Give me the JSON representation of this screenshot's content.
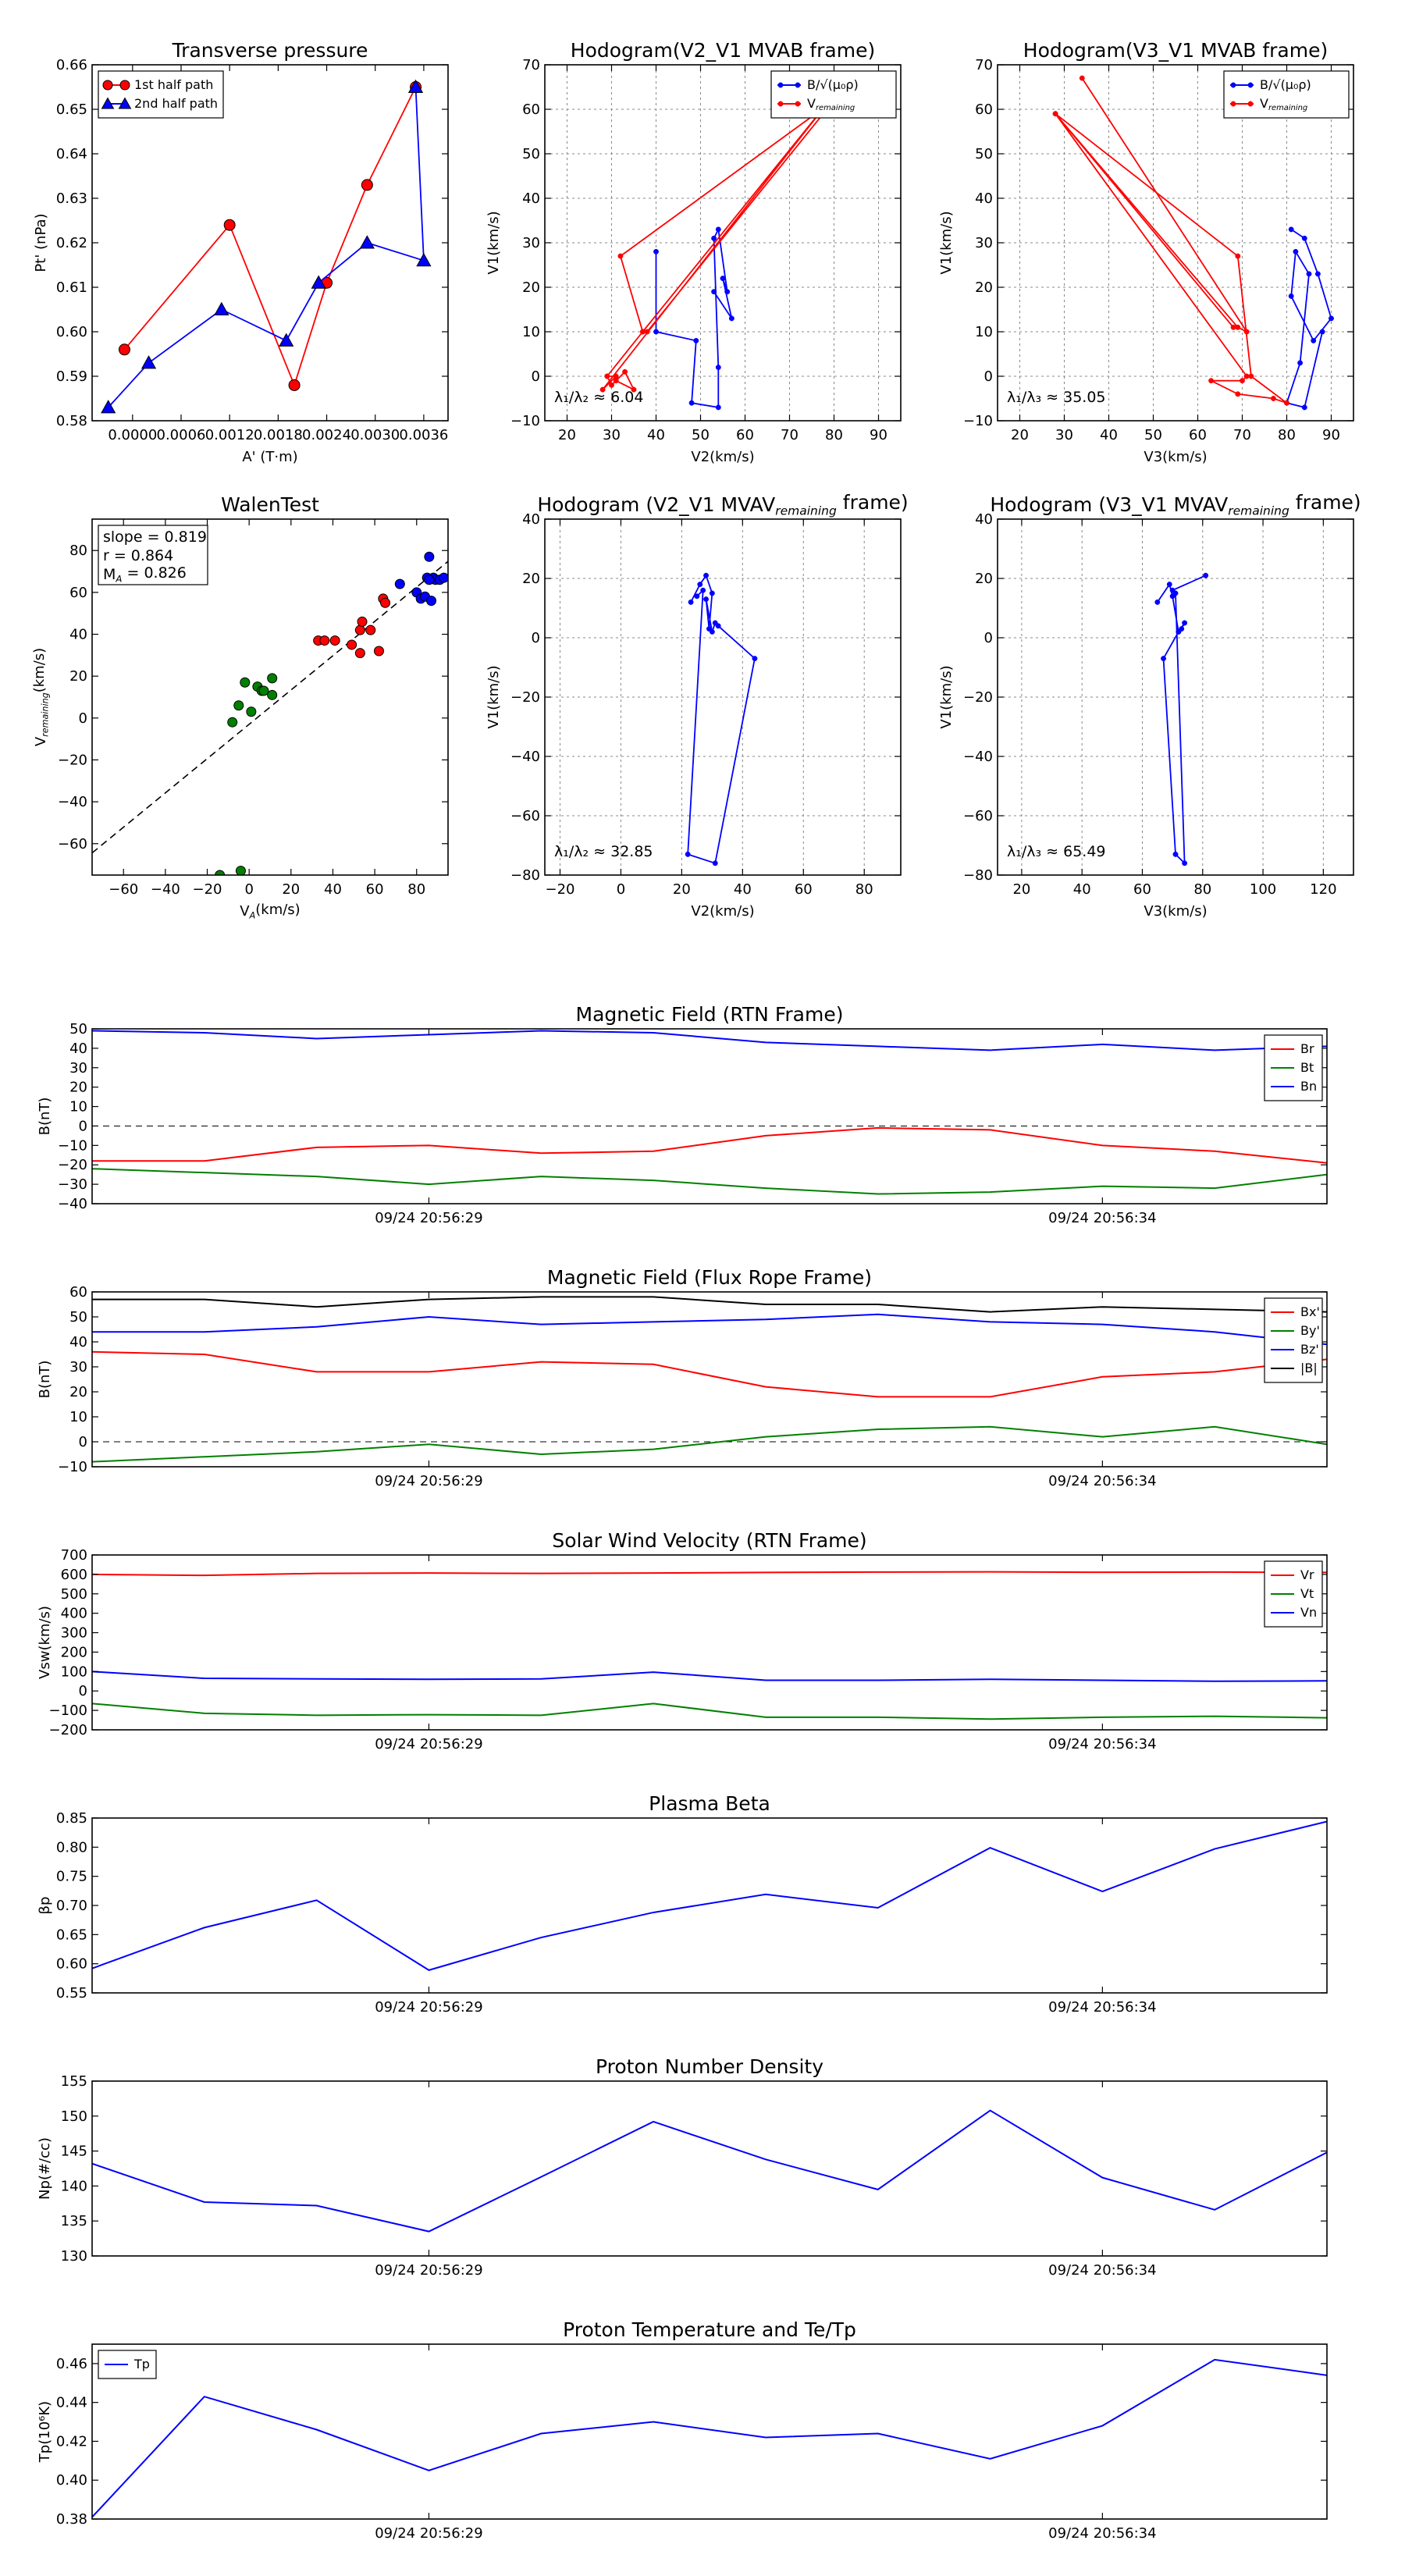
{
  "chart_data": [
    {
      "id": "p1",
      "type": "line",
      "title": "Transverse pressure",
      "xlabel": "A' (T·m)",
      "ylabel": "Pt' (nPa)",
      "xlim": [
        -0.0005,
        0.0039
      ],
      "ylim": [
        0.58,
        0.66
      ],
      "xticks": [
        0.0,
        0.0006,
        0.0012,
        0.0018,
        0.0024,
        0.003,
        0.0036
      ],
      "xticklabels": [
        "0.0000",
        "0.0006",
        "0.0012",
        "0.0018",
        "0.0024",
        "0.0030",
        "0.0036"
      ],
      "yticks": [
        0.58,
        0.59,
        0.6,
        0.61,
        0.62,
        0.63,
        0.64,
        0.65,
        0.66
      ],
      "yticklabels": [
        "0.58",
        "0.59",
        "0.60",
        "0.61",
        "0.62",
        "0.63",
        "0.64",
        "0.65",
        "0.66"
      ],
      "grid": false,
      "legend": "top-left",
      "series": [
        {
          "name": "1st half path",
          "color": "#ff0000",
          "marker": "circle",
          "x": [
            -0.0001,
            0.0012,
            0.002,
            0.0024,
            0.0029,
            0.0035
          ],
          "y": [
            0.596,
            0.624,
            0.588,
            0.611,
            0.633,
            0.655
          ]
        },
        {
          "name": "2nd half path",
          "color": "#0000ff",
          "marker": "triangle",
          "x": [
            -0.0003,
            0.0002,
            0.0011,
            0.0019,
            0.0023,
            0.0029,
            0.0036,
            0.0035
          ],
          "y": [
            0.583,
            0.593,
            0.605,
            0.598,
            0.611,
            0.62,
            0.616,
            0.655
          ]
        }
      ]
    },
    {
      "id": "p2",
      "type": "line",
      "title": "Hodogram(V2_V1 MVAB frame)",
      "xlabel": "V2(km/s)",
      "ylabel": "V1(km/s)",
      "xlim": [
        15,
        95
      ],
      "ylim": [
        -10,
        70
      ],
      "xticks": [
        20,
        30,
        40,
        50,
        60,
        70,
        80,
        90
      ],
      "xticklabels": [
        "20",
        "30",
        "40",
        "50",
        "60",
        "70",
        "80",
        "90"
      ],
      "yticks": [
        -10,
        0,
        10,
        20,
        30,
        40,
        50,
        60,
        70
      ],
      "yticklabels": [
        "−10",
        "0",
        "10",
        "20",
        "30",
        "40",
        "50",
        "60",
        "70"
      ],
      "grid": true,
      "legend": "top-right",
      "annotation": "λ₁/λ₂ ≈ 6.04",
      "series": [
        {
          "name": "B/√(μ₀ρ)",
          "color": "#0000ff",
          "marker": "dot",
          "x": [
            40,
            40,
            49,
            48,
            54,
            54,
            53,
            54,
            56,
            55,
            57,
            53
          ],
          "y": [
            28,
            10,
            8,
            -6,
            -7,
            2,
            31,
            33,
            19,
            22,
            13,
            19
          ]
        },
        {
          "name": "V_remaining",
          "color": "#ff0000",
          "marker": "dot",
          "x": [
            31,
            35,
            33,
            30,
            29,
            37,
            38,
            80,
            32,
            37,
            79,
            28,
            31,
            29
          ],
          "y": [
            -1,
            -3,
            1,
            -2,
            0,
            10,
            10,
            62,
            27,
            10,
            62,
            -3,
            0,
            0
          ]
        }
      ]
    },
    {
      "id": "p3",
      "type": "line",
      "title": "Hodogram(V3_V1 MVAB frame)",
      "xlabel": "V3(km/s)",
      "ylabel": "V1(km/s)",
      "xlim": [
        15,
        95
      ],
      "ylim": [
        -10,
        70
      ],
      "xticks": [
        20,
        30,
        40,
        50,
        60,
        70,
        80,
        90
      ],
      "xticklabels": [
        "20",
        "30",
        "40",
        "50",
        "60",
        "70",
        "80",
        "90"
      ],
      "yticks": [
        -10,
        0,
        10,
        20,
        30,
        40,
        50,
        60,
        70
      ],
      "yticklabels": [
        "−10",
        "0",
        "10",
        "20",
        "30",
        "40",
        "50",
        "60",
        "70"
      ],
      "grid": true,
      "legend": "top-right",
      "annotation": "λ₁/λ₃ ≈ 35.05",
      "series": [
        {
          "name": "B/√(μ₀ρ)",
          "color": "#0000ff",
          "marker": "dot",
          "x": [
            81,
            84,
            87,
            90,
            86,
            81,
            82,
            85,
            83,
            80,
            84,
            88
          ],
          "y": [
            33,
            31,
            23,
            13,
            8,
            18,
            28,
            23,
            3,
            -6,
            -7,
            10
          ]
        },
        {
          "name": "V_remaining",
          "color": "#ff0000",
          "marker": "dot",
          "x": [
            34,
            71,
            69,
            28,
            71,
            70,
            63,
            69,
            77,
            80,
            72,
            69,
            28,
            68
          ],
          "y": [
            67,
            10,
            11,
            59,
            0,
            -1,
            -1,
            -4,
            -5,
            -6,
            0,
            27,
            59,
            11
          ]
        }
      ]
    },
    {
      "id": "p4",
      "type": "scatter",
      "title": "WalenTest",
      "xlabel": "V_A(km/s)",
      "ylabel": "V_remaining(km/s)",
      "xlim": [
        -75,
        95
      ],
      "ylim": [
        -75,
        95
      ],
      "xticks": [
        -60,
        -40,
        -20,
        0,
        20,
        40,
        60,
        80
      ],
      "xticklabels": [
        "−60",
        "−40",
        "−20",
        "0",
        "20",
        "40",
        "60",
        "80"
      ],
      "yticks": [
        -60,
        -40,
        -20,
        0,
        20,
        40,
        60,
        80
      ],
      "yticklabels": [
        "−60",
        "−40",
        "−20",
        "0",
        "20",
        "40",
        "60",
        "80"
      ],
      "grid": false,
      "stats": [
        "slope = 0.819",
        "r = 0.864",
        "M_A = 0.826"
      ],
      "fit": {
        "slope": 0.819,
        "intercept": -3
      },
      "series": [
        {
          "name": "green",
          "color": "#008000",
          "x": [
            -8,
            -5,
            -2,
            1,
            4,
            6,
            7,
            11,
            11,
            -14,
            -4
          ],
          "y": [
            -2,
            6,
            17,
            3,
            15,
            13,
            13,
            11,
            19,
            -75,
            -73
          ]
        },
        {
          "name": "red",
          "color": "#ff0000",
          "x": [
            33,
            36,
            41,
            49,
            53,
            54,
            58,
            62,
            64,
            65,
            53
          ],
          "y": [
            37,
            37,
            37,
            35,
            42,
            46,
            42,
            32,
            57,
            55,
            31
          ]
        },
        {
          "name": "blue",
          "color": "#0000ff",
          "x": [
            72,
            80,
            82,
            84,
            85,
            86,
            87,
            88,
            89,
            91,
            93,
            86
          ],
          "y": [
            64,
            60,
            57,
            58,
            67,
            77,
            56,
            67,
            66,
            66,
            67,
            66
          ]
        }
      ]
    },
    {
      "id": "p5",
      "type": "line",
      "title": "Hodogram (V2_V1 MVAV_remaining frame)",
      "xlabel": "V2(km/s)",
      "ylabel": "V1(km/s)",
      "xlim": [
        -25,
        92
      ],
      "ylim": [
        -80,
        40
      ],
      "xticks": [
        -20,
        0,
        20,
        40,
        60,
        80
      ],
      "xticklabels": [
        "−20",
        "0",
        "20",
        "40",
        "60",
        "80"
      ],
      "yticks": [
        -80,
        -60,
        -40,
        -20,
        0,
        20,
        40
      ],
      "yticklabels": [
        "−80",
        "−60",
        "−40",
        "−20",
        "0",
        "20",
        "40"
      ],
      "grid": true,
      "annotation": "λ₁/λ₂ ≈ 32.85",
      "series": [
        {
          "name": "trace",
          "color": "#0000ff",
          "marker": "dot",
          "x": [
            23,
            26,
            28,
            30,
            29,
            28,
            30,
            31,
            32,
            44,
            31,
            22,
            27,
            25
          ],
          "y": [
            12,
            18,
            21,
            15,
            3,
            13,
            2,
            5,
            4,
            -7,
            -76,
            -73,
            16,
            14
          ]
        }
      ]
    },
    {
      "id": "p6",
      "type": "line",
      "title": "Hodogram (V3_V1 MVAV_remaining frame)",
      "xlabel": "V3(km/s)",
      "ylabel": "V1(km/s)",
      "xlim": [
        12,
        130
      ],
      "ylim": [
        -80,
        40
      ],
      "xticks": [
        20,
        40,
        60,
        80,
        100,
        120
      ],
      "xticklabels": [
        "20",
        "40",
        "60",
        "80",
        "100",
        "120"
      ],
      "yticks": [
        -80,
        -60,
        -40,
        -20,
        0,
        20,
        40
      ],
      "yticklabels": [
        "−80",
        "−60",
        "−40",
        "−20",
        "0",
        "20",
        "40"
      ],
      "grid": true,
      "annotation": "λ₁/λ₃ ≈ 65.49",
      "series": [
        {
          "name": "trace",
          "color": "#0000ff",
          "marker": "dot",
          "x": [
            65,
            69,
            70,
            72,
            74,
            73,
            72,
            67,
            71,
            74,
            71,
            70,
            81
          ],
          "y": [
            12,
            18,
            14,
            2,
            5,
            3,
            2,
            -7,
            -73,
            -76,
            15,
            16,
            21
          ]
        }
      ]
    },
    {
      "id": "ts1",
      "type": "line",
      "title": "Magnetic Field (RTN Frame)",
      "ylabel": "B(nT)",
      "ylim": [
        -40,
        50
      ],
      "yticks": [
        -40,
        -30,
        -20,
        -10,
        0,
        10,
        20,
        30,
        40,
        50
      ],
      "yticklabels": [
        "−40",
        "−30",
        "−20",
        "−10",
        "0",
        "10",
        "20",
        "30",
        "40",
        "50"
      ],
      "xlim": [
        0,
        11
      ],
      "xticks": [
        3,
        9
      ],
      "xticklabels": [
        "09/24 20:56:29",
        "09/24 20:56:34"
      ],
      "zero_line": true,
      "legend": "top-right",
      "series": [
        {
          "name": "Br",
          "color": "#ff0000",
          "y": [
            -18,
            -18,
            -11,
            -10,
            -14,
            -13,
            -5,
            -1,
            -2,
            -10,
            -13,
            -19
          ]
        },
        {
          "name": "Bt",
          "color": "#008000",
          "y": [
            -22,
            -24,
            -26,
            -30,
            -26,
            -28,
            -32,
            -35,
            -34,
            -31,
            -32,
            -25
          ]
        },
        {
          "name": "Bn",
          "color": "#0000ff",
          "y": [
            49,
            48,
            45,
            47,
            49,
            48,
            43,
            41,
            39,
            42,
            39,
            41
          ]
        }
      ]
    },
    {
      "id": "ts2",
      "type": "line",
      "title": "Magnetic Field (Flux Rope Frame)",
      "ylabel": "B(nT)",
      "ylim": [
        -10,
        60
      ],
      "yticks": [
        -10,
        0,
        10,
        20,
        30,
        40,
        50,
        60
      ],
      "yticklabels": [
        "−10",
        "0",
        "10",
        "20",
        "30",
        "40",
        "50",
        "60"
      ],
      "xlim": [
        0,
        11
      ],
      "xticks": [
        3,
        9
      ],
      "xticklabels": [
        "09/24 20:56:29",
        "09/24 20:56:34"
      ],
      "zero_line": true,
      "legend": "top-right",
      "series": [
        {
          "name": "Bx'",
          "color": "#ff0000",
          "y": [
            36,
            35,
            28,
            28,
            32,
            31,
            22,
            18,
            18,
            26,
            28,
            33
          ]
        },
        {
          "name": "By'",
          "color": "#008000",
          "y": [
            -8,
            -6,
            -4,
            -1,
            -5,
            -3,
            2,
            5,
            6,
            2,
            6,
            -1
          ]
        },
        {
          "name": "Bz'",
          "color": "#0000ff",
          "y": [
            44,
            44,
            46,
            50,
            47,
            48,
            49,
            51,
            48,
            47,
            44,
            39
          ]
        },
        {
          "name": "|B|",
          "color": "#000000",
          "y": [
            57,
            57,
            54,
            57,
            58,
            58,
            55,
            55,
            52,
            54,
            53,
            52
          ]
        }
      ]
    },
    {
      "id": "ts3",
      "type": "line",
      "title": "Solar Wind Velocity (RTN Frame)",
      "ylabel": "Vsw(km/s)",
      "ylim": [
        -200,
        700
      ],
      "yticks": [
        -200,
        -100,
        0,
        100,
        200,
        300,
        400,
        500,
        600,
        700
      ],
      "yticklabels": [
        "−200",
        "−100",
        "0",
        "100",
        "200",
        "300",
        "400",
        "500",
        "600",
        "700"
      ],
      "xlim": [
        0,
        11
      ],
      "xticks": [
        3,
        9
      ],
      "xticklabels": [
        "09/24 20:56:29",
        "09/24 20:56:34"
      ],
      "legend": "top-right",
      "series": [
        {
          "name": "Vr",
          "color": "#ff0000",
          "y": [
            600,
            595,
            605,
            607,
            605,
            607,
            610,
            612,
            613,
            611,
            612,
            610
          ]
        },
        {
          "name": "Vt",
          "color": "#008000",
          "y": [
            -65,
            -115,
            -125,
            -122,
            -125,
            -65,
            -135,
            -135,
            -145,
            -135,
            -130,
            -138
          ]
        },
        {
          "name": "Vn",
          "color": "#0000ff",
          "y": [
            100,
            65,
            62,
            60,
            62,
            97,
            55,
            55,
            60,
            55,
            50,
            52
          ]
        }
      ]
    },
    {
      "id": "ts4",
      "type": "line",
      "title": "Plasma Beta",
      "ylabel": "βp",
      "ylim": [
        0.55,
        0.85
      ],
      "yticks": [
        0.55,
        0.6,
        0.65,
        0.7,
        0.75,
        0.8,
        0.85
      ],
      "yticklabels": [
        "0.55",
        "0.60",
        "0.65",
        "0.70",
        "0.75",
        "0.80",
        "0.85"
      ],
      "xlim": [
        0,
        11
      ],
      "xticks": [
        3,
        9
      ],
      "xticklabels": [
        "09/24 20:56:29",
        "09/24 20:56:34"
      ],
      "series": [
        {
          "name": "beta",
          "color": "#0000ff",
          "y": [
            0.592,
            0.662,
            0.709,
            0.589,
            0.645,
            0.688,
            0.719,
            0.696,
            0.799,
            0.724,
            0.797,
            0.844
          ]
        }
      ]
    },
    {
      "id": "ts5",
      "type": "line",
      "title": "Proton Number Density",
      "ylabel": "Np(#/cc)",
      "ylim": [
        130,
        155
      ],
      "yticks": [
        130,
        135,
        140,
        145,
        150,
        155
      ],
      "yticklabels": [
        "130",
        "135",
        "140",
        "145",
        "150",
        "155"
      ],
      "xlim": [
        0,
        11
      ],
      "xticks": [
        3,
        9
      ],
      "xticklabels": [
        "09/24 20:56:29",
        "09/24 20:56:34"
      ],
      "series": [
        {
          "name": "Np",
          "color": "#0000ff",
          "y": [
            143.2,
            137.7,
            137.2,
            133.5,
            141.3,
            149.2,
            143.8,
            139.5,
            150.8,
            141.2,
            136.6,
            144.8
          ]
        }
      ]
    },
    {
      "id": "ts6",
      "type": "line",
      "title": "Proton Temperature and Te/Tp",
      "ylabel": "Tp(10⁶K)",
      "ylim": [
        0.38,
        0.47
      ],
      "yticks": [
        0.38,
        0.4,
        0.42,
        0.44,
        0.46
      ],
      "yticklabels": [
        "0.38",
        "0.40",
        "0.42",
        "0.44",
        "0.46"
      ],
      "xlim": [
        0,
        11
      ],
      "xticks": [
        3,
        9
      ],
      "xticklabels": [
        "09/24 20:56:29",
        "09/24 20:56:34"
      ],
      "legend": "top-left",
      "series": [
        {
          "name": "Tp",
          "color": "#0000ff",
          "y": [
            0.381,
            0.443,
            0.426,
            0.405,
            0.424,
            0.43,
            0.422,
            0.424,
            0.411,
            0.428,
            0.462,
            0.454
          ]
        }
      ]
    }
  ]
}
